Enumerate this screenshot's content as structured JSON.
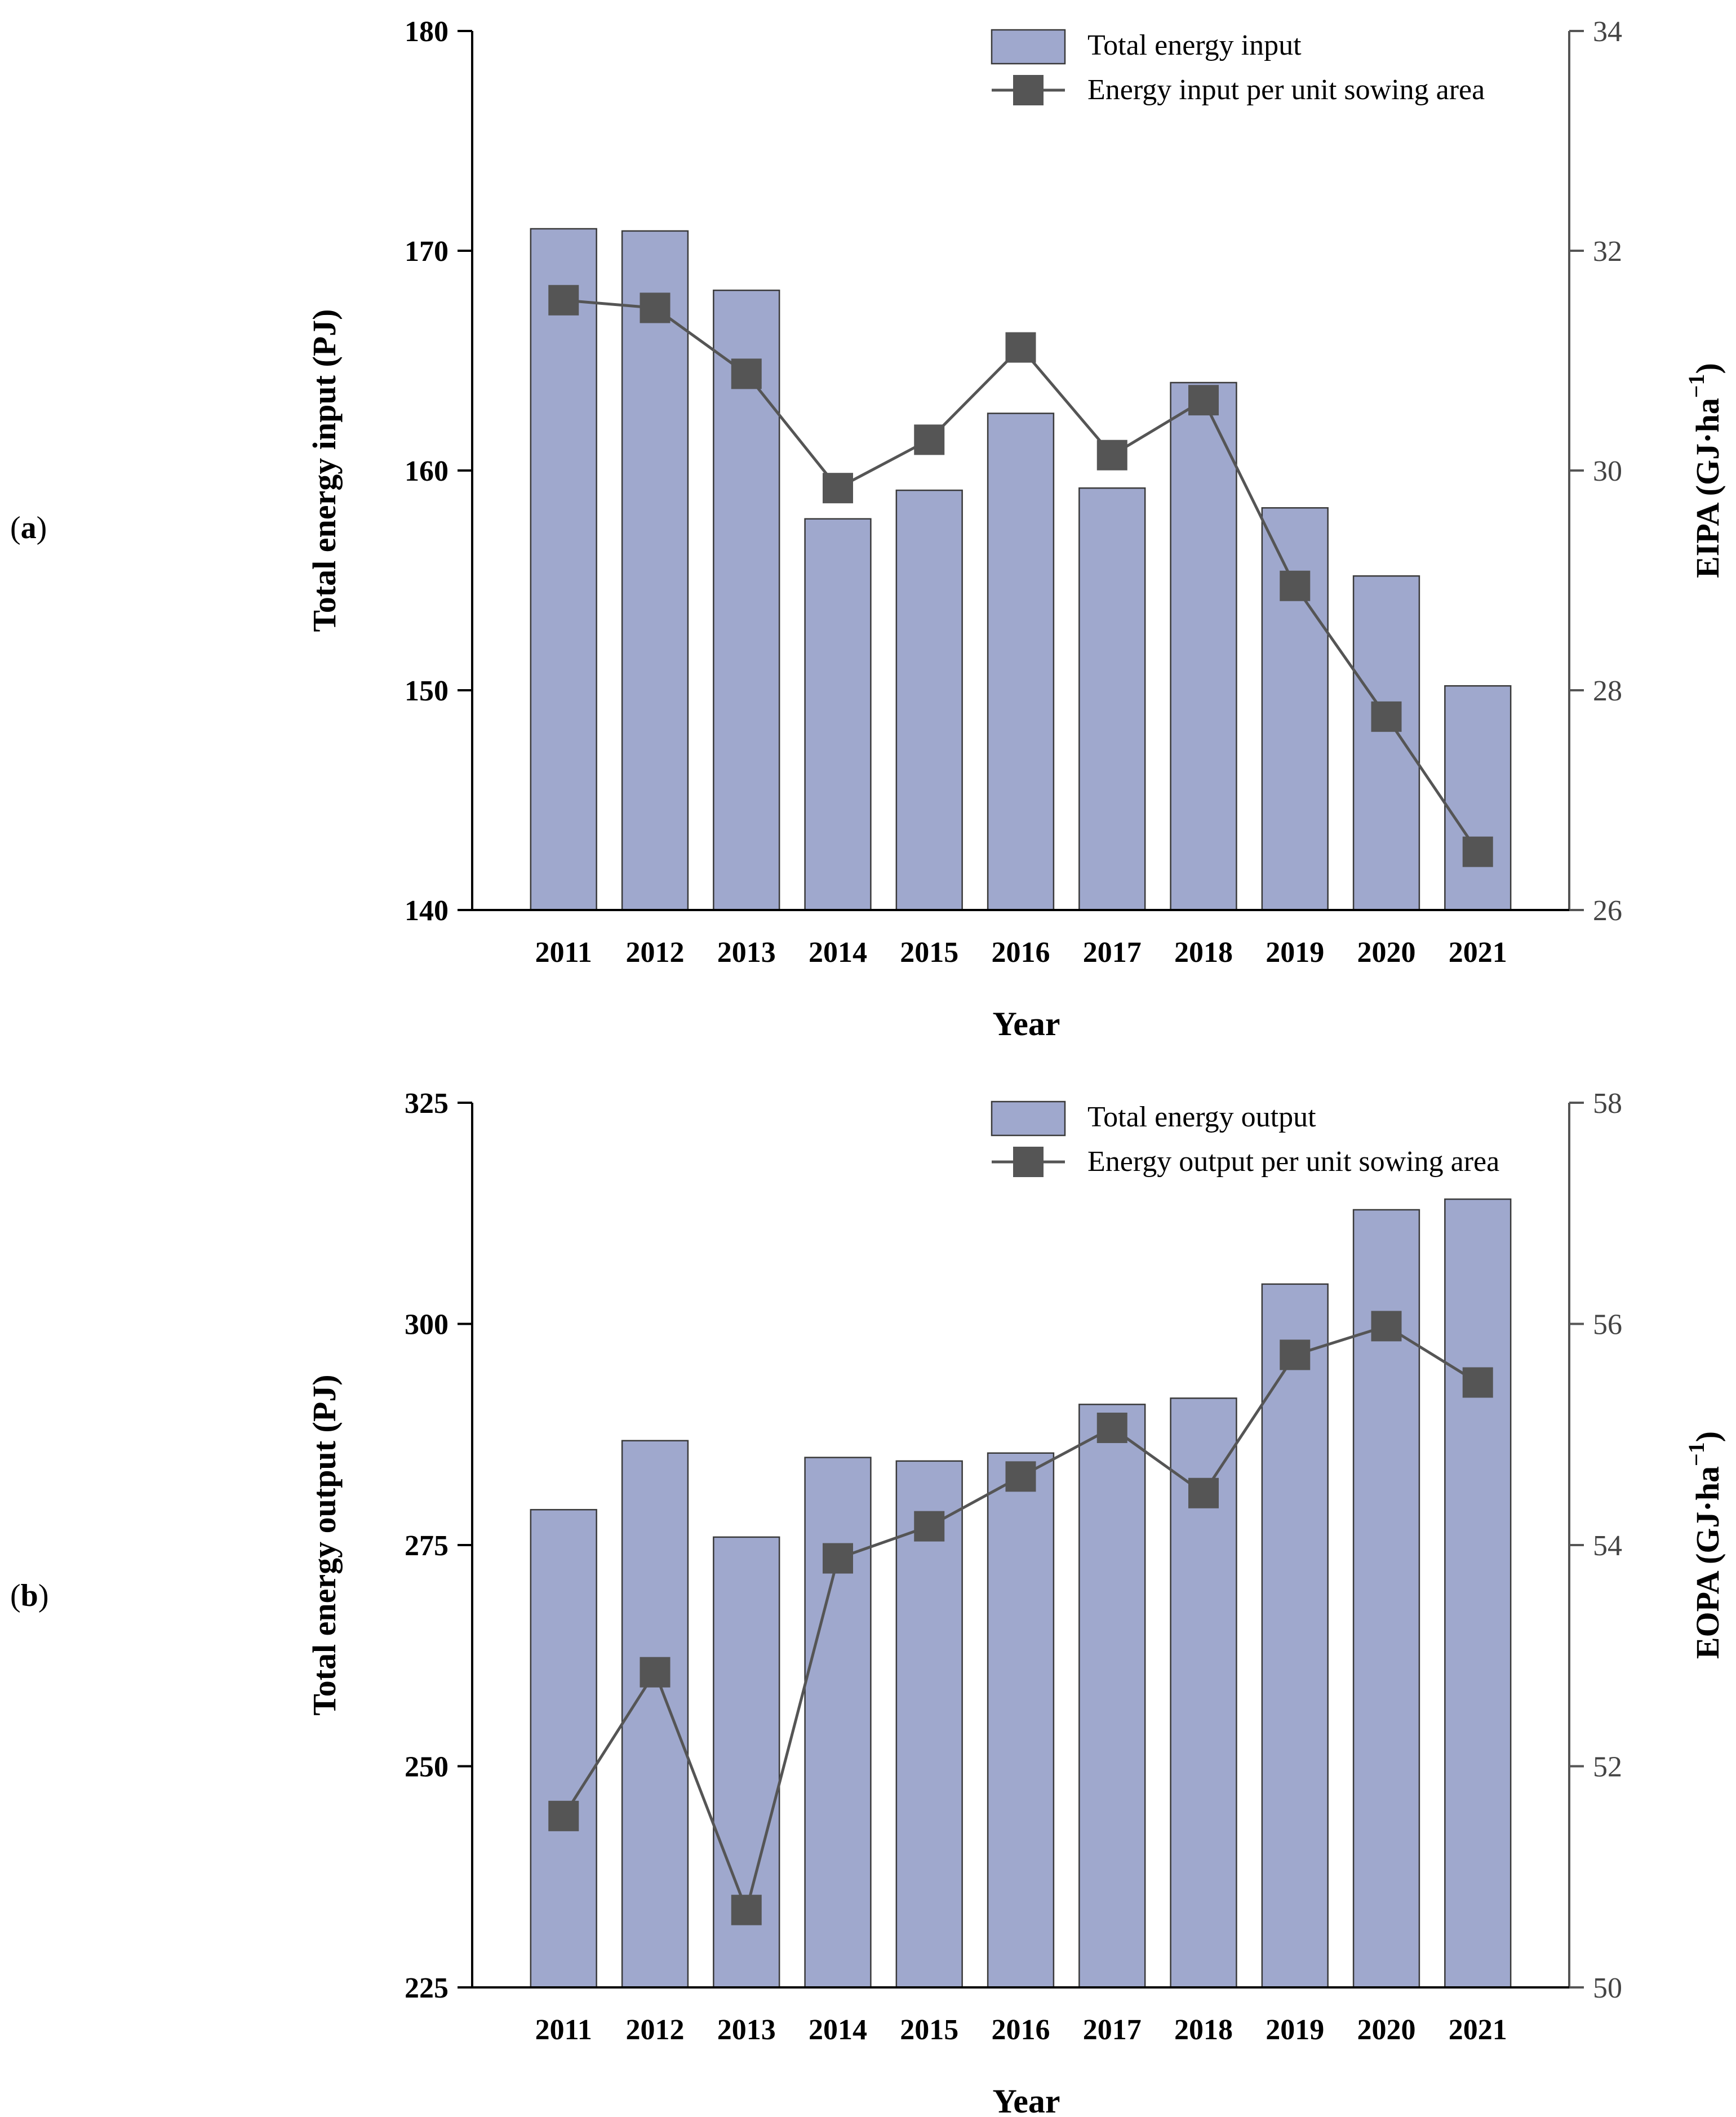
{
  "colors": {
    "bar_fill": "#9fa8cd",
    "bar_stroke": "#3a3a3a",
    "line": "#555555",
    "marker": "#555555",
    "axis": "#000000"
  },
  "chart_data": [
    {
      "panel_label": "a",
      "type": "bar+line",
      "categories": [
        "2011",
        "2012",
        "2013",
        "2014",
        "2015",
        "2016",
        "2017",
        "2018",
        "2019",
        "2020",
        "2021"
      ],
      "xlabel": "Year",
      "ylabel": "Total energy input (PJ)",
      "ylabel_right": "EIPA (GJ·ha",
      "ylabel_right_sup": "−1",
      "ylabel_right_close": ")",
      "ylim": [
        140,
        180
      ],
      "yticks": [
        140,
        150,
        160,
        170,
        180
      ],
      "ylim_right": [
        26,
        34
      ],
      "yticks_right": [
        26,
        28,
        30,
        32,
        34
      ],
      "series": [
        {
          "name": "Total energy input",
          "kind": "bar",
          "axis": "left",
          "values": [
            171.0,
            170.9,
            168.2,
            157.8,
            159.1,
            162.6,
            159.2,
            164.0,
            158.3,
            155.2,
            150.2
          ]
        },
        {
          "name": "Energy input per unit sowing area",
          "kind": "line",
          "axis": "right",
          "values": [
            31.55,
            31.48,
            30.88,
            29.84,
            30.28,
            31.12,
            30.14,
            30.64,
            28.95,
            27.76,
            26.53
          ]
        }
      ]
    },
    {
      "panel_label": "b",
      "type": "bar+line",
      "categories": [
        "2011",
        "2012",
        "2013",
        "2014",
        "2015",
        "2016",
        "2017",
        "2018",
        "2019",
        "2020",
        "2021"
      ],
      "xlabel": "Year",
      "ylabel": "Total energy output (PJ)",
      "ylabel_right": "EOPA (GJ·ha",
      "ylabel_right_sup": "−1",
      "ylabel_right_close": ")",
      "ylim": [
        225,
        325
      ],
      "yticks": [
        225,
        250,
        275,
        300,
        325
      ],
      "ylim_right": [
        50,
        58
      ],
      "yticks_right": [
        50,
        52,
        54,
        56,
        58
      ],
      "series": [
        {
          "name": "Total energy output",
          "kind": "bar",
          "axis": "left",
          "values": [
            279.0,
            286.8,
            275.9,
            284.9,
            284.5,
            285.4,
            290.9,
            291.6,
            304.5,
            312.9,
            314.1
          ]
        },
        {
          "name": "Energy output per unit sowing area",
          "kind": "line",
          "axis": "right",
          "values": [
            51.55,
            52.85,
            50.7,
            53.88,
            54.17,
            54.62,
            55.06,
            54.47,
            55.72,
            55.98,
            55.47
          ]
        }
      ]
    }
  ]
}
